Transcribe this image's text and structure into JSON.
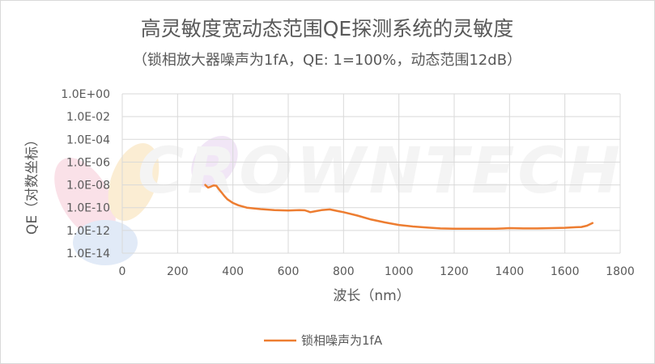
{
  "chart_data": {
    "type": "line",
    "title": "高灵敏度宽动态范围QE探测系统的灵敏度",
    "subtitle": "（锁相放大器噪声为1fA，QE: 1=100%，动态范围12dB）",
    "xlabel": "波长（nm）",
    "ylabel": "QE（对数坐标）",
    "xlim": [
      0,
      1800
    ],
    "ylim_exp": [
      -14,
      0
    ],
    "yscale": "log",
    "grid": true,
    "legend": "bottom",
    "x_ticks": [
      "0",
      "200",
      "400",
      "600",
      "800",
      "1000",
      "1200",
      "1400",
      "1600",
      "1800"
    ],
    "y_ticks": [
      "1.0E+00",
      "1.0E-02",
      "1.0E-04",
      "1.0E-06",
      "1.0E-08",
      "1.0E-10",
      "1.0E-12",
      "1.0E-14"
    ],
    "series": [
      {
        "name": "锁相噪声为1fA",
        "color": "#ED7D31",
        "x": [
          300,
          310,
          320,
          330,
          340,
          350,
          360,
          370,
          380,
          400,
          420,
          450,
          500,
          550,
          600,
          640,
          660,
          680,
          700,
          720,
          750,
          780,
          800,
          850,
          900,
          950,
          1000,
          1050,
          1100,
          1150,
          1200,
          1250,
          1300,
          1350,
          1380,
          1400,
          1450,
          1500,
          1550,
          1600,
          1640,
          1660,
          1680,
          1700
        ],
        "y": [
          1e-08,
          5.8e-09,
          7e-09,
          9e-09,
          8.5e-09,
          4e-09,
          2e-09,
          1e-09,
          5.5e-10,
          2.6e-10,
          1.6e-10,
          1e-10,
          7.5e-11,
          6e-11,
          5.6e-11,
          6e-11,
          5.8e-11,
          4e-11,
          5e-11,
          6e-11,
          7e-11,
          5e-11,
          4e-11,
          2e-11,
          9e-12,
          5e-12,
          3e-12,
          2.2e-12,
          1.8e-12,
          1.5e-12,
          1.4e-12,
          1.4e-12,
          1.4e-12,
          1.4e-12,
          1.5e-12,
          1.6e-12,
          1.5e-12,
          1.5e-12,
          1.6e-12,
          1.7e-12,
          1.9e-12,
          2e-12,
          2.6e-12,
          4.5e-12
        ]
      }
    ]
  },
  "watermark": {
    "text": "CROWNTECH",
    "colors": [
      "#f6c9d6",
      "#f9dfb0",
      "#c9d9f2",
      "#d6ecc9"
    ]
  }
}
